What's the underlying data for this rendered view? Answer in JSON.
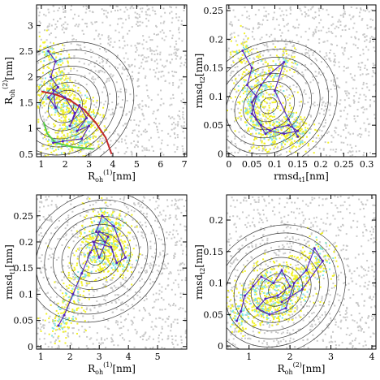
{
  "colors": {
    "density": "#c9c9c9",
    "yellow": "#f2f226",
    "cyan": "#7fe5e5",
    "trajectory": "#5522bb",
    "contour": "#3c3c3c",
    "red_curve": "#c0282a",
    "green_curve": "#55cc44"
  },
  "chart_data": [
    {
      "type": "scatter",
      "panel": "top-left",
      "xlabel": {
        "main": "R",
        "sub": "oh",
        "sup": "(1)",
        "unit": "[nm]"
      },
      "ylabel": {
        "main": "R",
        "sub": "oh",
        "sup": "(2)",
        "unit": "[nm]"
      },
      "xlim": [
        0.8,
        7.1
      ],
      "ylim": [
        0.45,
        3.4
      ],
      "xticks": [
        1,
        2,
        3,
        4,
        5,
        6,
        7
      ],
      "yticks": [
        0.5,
        1,
        1.5,
        2,
        2.5,
        3
      ],
      "ytick_labels": [
        "0.5",
        "1",
        "1.5",
        "2",
        "2.5",
        "3"
      ],
      "trajectory": [
        [
          1.3,
          2.5
        ],
        [
          1.6,
          2.3
        ],
        [
          1.4,
          2.0
        ],
        [
          1.7,
          1.8
        ],
        [
          1.3,
          1.6
        ],
        [
          1.6,
          1.4
        ],
        [
          1.5,
          1.75
        ],
        [
          2.0,
          1.6
        ],
        [
          2.4,
          1.3
        ],
        [
          2.2,
          1.05
        ],
        [
          2.6,
          1.45
        ],
        [
          2.9,
          1.2
        ],
        [
          2.5,
          0.95
        ],
        [
          3.0,
          1.05
        ],
        [
          2.7,
          0.8
        ],
        [
          1.9,
          0.75
        ],
        [
          1.5,
          0.72
        ]
      ],
      "curves": [
        {
          "color": "red",
          "points": [
            [
              1.0,
              1.72
            ],
            [
              1.6,
              1.66
            ],
            [
              2.2,
              1.55
            ],
            [
              2.8,
              1.36
            ],
            [
              3.3,
              1.1
            ],
            [
              3.7,
              0.82
            ],
            [
              3.95,
              0.5
            ]
          ]
        },
        {
          "color": "green",
          "points": [
            [
              1.1,
              1.12
            ],
            [
              1.25,
              0.9
            ],
            [
              1.6,
              0.72
            ],
            [
              2.3,
              0.64
            ],
            [
              3.2,
              0.6
            ]
          ]
        }
      ]
    },
    {
      "type": "scatter",
      "panel": "top-right",
      "xlabel": {
        "main": "rmsd",
        "sub": "t1",
        "unit": "[nm]"
      },
      "ylabel": {
        "main": "rmsd",
        "sub": "t2",
        "unit": "[nm]"
      },
      "xlim": [
        -0.005,
        0.32
      ],
      "ylim": [
        -0.005,
        0.26
      ],
      "xticks": [
        0,
        0.05,
        0.1,
        0.15,
        0.2,
        0.25,
        0.3
      ],
      "xtick_labels": [
        "0",
        "0.05",
        "0.1",
        "0.15",
        "0.2",
        "0.25",
        "0.3"
      ],
      "yticks": [
        0,
        0.05,
        0.1,
        0.15,
        0.2,
        0.25
      ],
      "ytick_labels": [
        "0",
        "0.05",
        "0.1",
        "0.15",
        "0.2",
        "0.25"
      ],
      "trajectory": [
        [
          0.03,
          0.18
        ],
        [
          0.05,
          0.15
        ],
        [
          0.04,
          0.12
        ],
        [
          0.06,
          0.1
        ],
        [
          0.05,
          0.07
        ],
        [
          0.07,
          0.05
        ],
        [
          0.09,
          0.04
        ],
        [
          0.12,
          0.035
        ],
        [
          0.15,
          0.04
        ],
        [
          0.13,
          0.05
        ],
        [
          0.1,
          0.045
        ],
        [
          0.08,
          0.035
        ],
        [
          0.06,
          0.06
        ],
        [
          0.05,
          0.09
        ],
        [
          0.07,
          0.12
        ],
        [
          0.09,
          0.14
        ],
        [
          0.12,
          0.16
        ],
        [
          0.1,
          0.11
        ],
        [
          0.13,
          0.06
        ],
        [
          0.15,
          0.03
        ]
      ],
      "curves": []
    },
    {
      "type": "scatter",
      "panel": "bottom-left",
      "xlabel": {
        "main": "R",
        "sub": "oh",
        "sup": "(1)",
        "unit": "[nm]"
      },
      "ylabel": {
        "main": "rmsd",
        "sub": "t1",
        "unit": "[nm]"
      },
      "xlim": [
        0.85,
        6.0
      ],
      "ylim": [
        -0.005,
        0.29
      ],
      "xticks": [
        1,
        2,
        3,
        4,
        5
      ],
      "yticks": [
        0,
        0.05,
        0.1,
        0.15,
        0.2,
        0.25
      ],
      "ytick_labels": [
        "0",
        "0.05",
        "0.1",
        "0.15",
        "0.2",
        "0.25"
      ],
      "trajectory": [
        [
          1.6,
          0.04
        ],
        [
          1.8,
          0.06
        ],
        [
          2.1,
          0.1
        ],
        [
          2.4,
          0.14
        ],
        [
          2.7,
          0.18
        ],
        [
          3.0,
          0.22
        ],
        [
          3.3,
          0.21
        ],
        [
          3.0,
          0.17
        ],
        [
          2.8,
          0.2
        ],
        [
          3.4,
          0.19
        ],
        [
          3.6,
          0.16
        ],
        [
          3.9,
          0.17
        ],
        [
          3.5,
          0.23
        ],
        [
          3.1,
          0.25
        ],
        [
          2.9,
          0.22
        ],
        [
          3.2,
          0.2
        ]
      ],
      "curves": []
    },
    {
      "type": "scatter",
      "panel": "bottom-right",
      "xlabel": {
        "main": "R",
        "sub": "oh",
        "sup": "(2)",
        "unit": "[nm]"
      },
      "ylabel": {
        "main": "rmsd",
        "sub": "t2",
        "unit": "[nm]"
      },
      "xlim": [
        0.45,
        4.1
      ],
      "ylim": [
        -0.005,
        0.24
      ],
      "xticks": [
        1,
        2,
        3,
        4
      ],
      "yticks": [
        0,
        0.05,
        0.1,
        0.15,
        0.2
      ],
      "ytick_labels": [
        "0",
        "0.05",
        "0.1",
        "0.15",
        "0.2"
      ],
      "trajectory": [
        [
          0.7,
          0.04
        ],
        [
          0.8,
          0.055
        ],
        [
          0.9,
          0.08
        ],
        [
          1.1,
          0.095
        ],
        [
          1.3,
          0.11
        ],
        [
          1.6,
          0.1
        ],
        [
          1.8,
          0.12
        ],
        [
          2.0,
          0.095
        ],
        [
          1.7,
          0.08
        ],
        [
          1.4,
          0.075
        ],
        [
          1.2,
          0.06
        ],
        [
          1.5,
          0.05
        ],
        [
          1.9,
          0.06
        ],
        [
          2.1,
          0.1
        ],
        [
          2.4,
          0.12
        ],
        [
          2.6,
          0.155
        ],
        [
          2.8,
          0.135
        ],
        [
          2.3,
          0.09
        ],
        [
          1.8,
          0.07
        ]
      ],
      "curves": []
    }
  ]
}
